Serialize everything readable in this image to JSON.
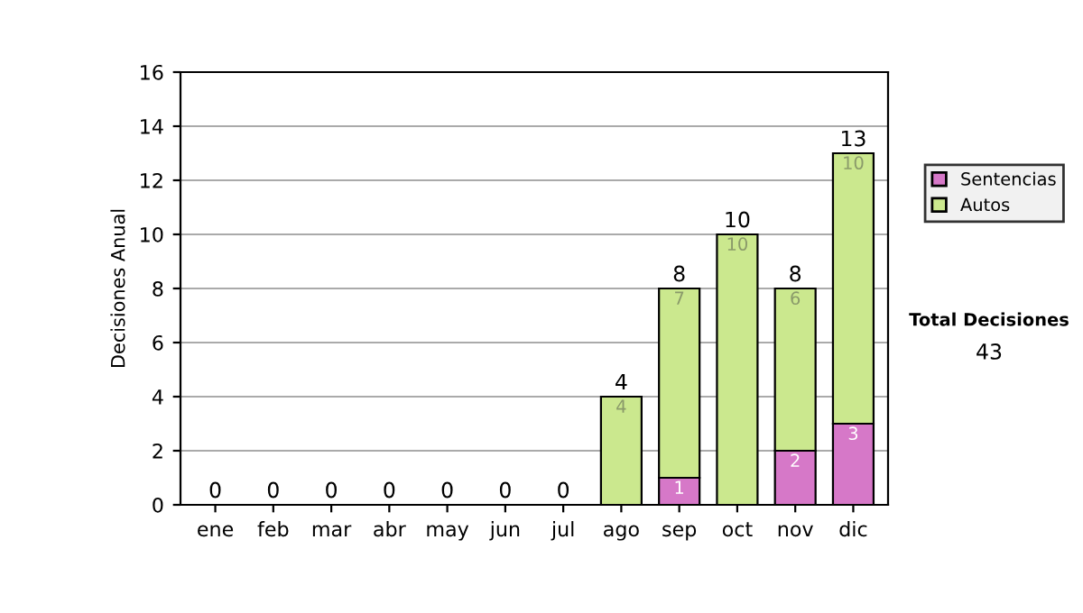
{
  "chart_data": {
    "type": "bar",
    "stacked": true,
    "ylabel": "Decisiones Anual",
    "categories": [
      "ene",
      "feb",
      "mar",
      "abr",
      "may",
      "jun",
      "jul",
      "ago",
      "sep",
      "oct",
      "nov",
      "dic"
    ],
    "series": [
      {
        "name": "Sentencias",
        "color": "#d678c8",
        "values": [
          0,
          0,
          0,
          0,
          0,
          0,
          0,
          0,
          1,
          0,
          2,
          3
        ],
        "value_labels": [
          null,
          null,
          null,
          null,
          null,
          null,
          null,
          null,
          "1",
          null,
          "2",
          "3"
        ]
      },
      {
        "name": "Autos",
        "color": "#cbe88e",
        "values": [
          0,
          0,
          0,
          0,
          0,
          0,
          0,
          4,
          7,
          10,
          6,
          10
        ],
        "value_labels": [
          null,
          null,
          null,
          null,
          null,
          null,
          null,
          "4",
          "7",
          "10",
          "6",
          "10"
        ]
      }
    ],
    "totals": [
      "0",
      "0",
      "0",
      "0",
      "0",
      "0",
      "0",
      "4",
      "8",
      "10",
      "8",
      "13"
    ],
    "ylim": [
      0,
      16
    ],
    "yticks": [
      0,
      2,
      4,
      6,
      8,
      10,
      12,
      14,
      16
    ],
    "grid": "y",
    "legend": "right",
    "annotations": [
      "Total Decisiones",
      "43"
    ]
  }
}
